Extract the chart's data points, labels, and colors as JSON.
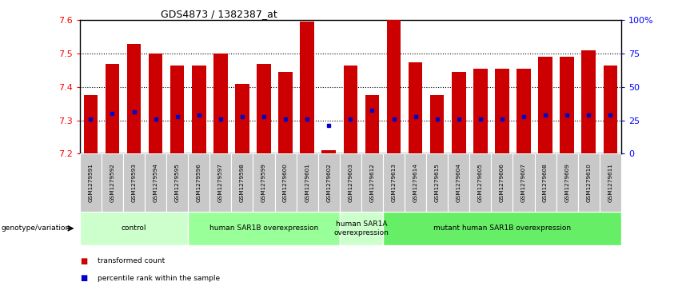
{
  "title": "GDS4873 / 1382387_at",
  "samples": [
    "GSM1279591",
    "GSM1279592",
    "GSM1279593",
    "GSM1279594",
    "GSM1279595",
    "GSM1279596",
    "GSM1279597",
    "GSM1279598",
    "GSM1279599",
    "GSM1279600",
    "GSM1279601",
    "GSM1279602",
    "GSM1279603",
    "GSM1279612",
    "GSM1279613",
    "GSM1279614",
    "GSM1279615",
    "GSM1279604",
    "GSM1279605",
    "GSM1279606",
    "GSM1279607",
    "GSM1279608",
    "GSM1279609",
    "GSM1279610",
    "GSM1279611"
  ],
  "bar_tops": [
    7.375,
    7.47,
    7.53,
    7.5,
    7.465,
    7.465,
    7.5,
    7.41,
    7.47,
    7.445,
    7.595,
    7.21,
    7.465,
    7.375,
    7.6,
    7.475,
    7.375,
    7.445,
    7.455,
    7.455,
    7.455,
    7.49,
    7.49,
    7.51,
    7.465
  ],
  "blue_dots": [
    7.305,
    7.32,
    7.325,
    7.305,
    7.31,
    7.315,
    7.305,
    7.31,
    7.31,
    7.305,
    7.305,
    7.285,
    7.305,
    7.33,
    7.305,
    7.31,
    7.305,
    7.305,
    7.305,
    7.305,
    7.31,
    7.315,
    7.315,
    7.315,
    7.315
  ],
  "bar_bottom": 7.2,
  "ylim": [
    7.2,
    7.6
  ],
  "right_ylim": [
    0,
    100
  ],
  "right_yticks": [
    0,
    25,
    50,
    75,
    100
  ],
  "right_yticklabels": [
    "0",
    "25",
    "50",
    "75",
    "100%"
  ],
  "left_yticks": [
    7.2,
    7.3,
    7.4,
    7.5,
    7.6
  ],
  "bar_color": "#cc0000",
  "dot_color": "#0000cc",
  "bar_width": 0.65,
  "groups": [
    {
      "label": "control",
      "start": 0,
      "end": 5,
      "color": "#ccffcc"
    },
    {
      "label": "human SAR1B overexpression",
      "start": 5,
      "end": 12,
      "color": "#99ff99"
    },
    {
      "label": "human SAR1A\noverexpression",
      "start": 12,
      "end": 14,
      "color": "#ccffcc"
    },
    {
      "label": "mutant human SAR1B overexpression",
      "start": 14,
      "end": 25,
      "color": "#66ee66"
    }
  ],
  "genotype_label": "genotype/variation",
  "legend_items": [
    {
      "color": "#cc0000",
      "label": "transformed count"
    },
    {
      "color": "#0000cc",
      "label": "percentile rank within the sample"
    }
  ],
  "background_color": "#ffffff",
  "label_bg": "#c8c8c8",
  "dotted_lines": [
    7.3,
    7.4,
    7.5
  ]
}
